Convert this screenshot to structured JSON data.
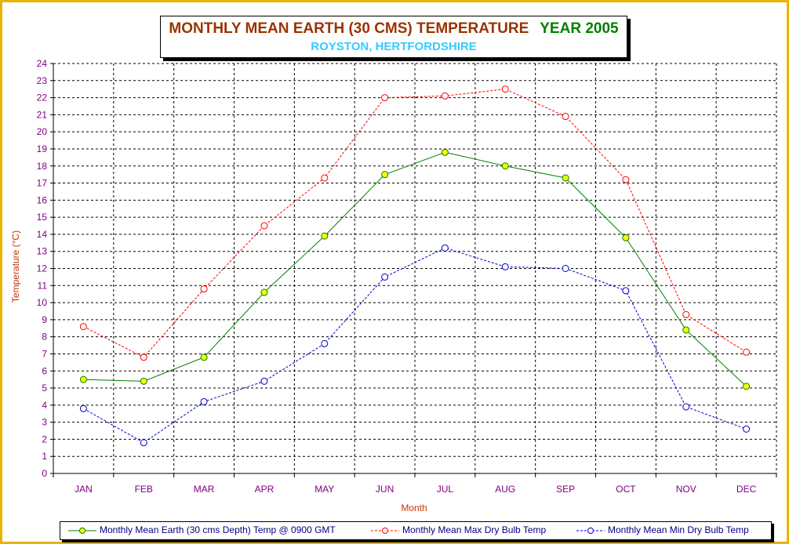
{
  "title": {
    "main": "MONTHLY MEAN  EARTH (30 CMS) TEMPERATURE",
    "year": "YEAR 2005",
    "subtitle": "ROYSTON, HERTFORDSHIRE"
  },
  "colors": {
    "frame": "#e8b400",
    "title_main": "#993300",
    "title_year": "#008000",
    "subtitle": "#33ccff",
    "axis_label": "#cc3300",
    "tick_label": "#800080",
    "legend_text": "#000080"
  },
  "chart_data": {
    "type": "line",
    "categories": [
      "JAN",
      "FEB",
      "MAR",
      "APR",
      "MAY",
      "JUN",
      "JUL",
      "AUG",
      "SEP",
      "OCT",
      "NOV",
      "DEC"
    ],
    "xlabel": "Month",
    "ylabel": "Temperature (°C)",
    "ylim": [
      0,
      24
    ],
    "yticks": [
      "0",
      "1",
      "2",
      "3",
      "4",
      "5",
      "6",
      "7",
      "8",
      "9",
      "10",
      "11",
      "12",
      "13",
      "14",
      "15",
      "16",
      "17",
      "18",
      "19",
      "20",
      "21",
      "22",
      "23",
      "24"
    ],
    "grid": true,
    "legend_position": "bottom",
    "series": [
      {
        "name": "Monthly Mean Earth (30 cms Depth) Temp @ 0900 GMT",
        "color": "#008000",
        "marker_fill": "#ffff00",
        "dash": "solid",
        "values": [
          5.5,
          5.4,
          6.8,
          10.6,
          13.9,
          17.5,
          18.8,
          18.0,
          17.3,
          13.8,
          8.4,
          5.1
        ]
      },
      {
        "name": "Monthly Mean Max Dry Bulb Temp",
        "color": "#ff0000",
        "marker_fill": "none",
        "dash": "dashed",
        "values": [
          8.6,
          6.8,
          10.8,
          14.5,
          17.3,
          22.0,
          22.1,
          22.5,
          20.9,
          17.2,
          9.3,
          7.1
        ]
      },
      {
        "name": "Monthly Mean Min Dry Bulb Temp",
        "color": "#0000cc",
        "marker_fill": "none",
        "dash": "dashed",
        "values": [
          3.8,
          1.8,
          4.2,
          5.4,
          7.6,
          11.5,
          13.2,
          12.1,
          12.0,
          10.7,
          3.9,
          2.6
        ]
      }
    ]
  }
}
